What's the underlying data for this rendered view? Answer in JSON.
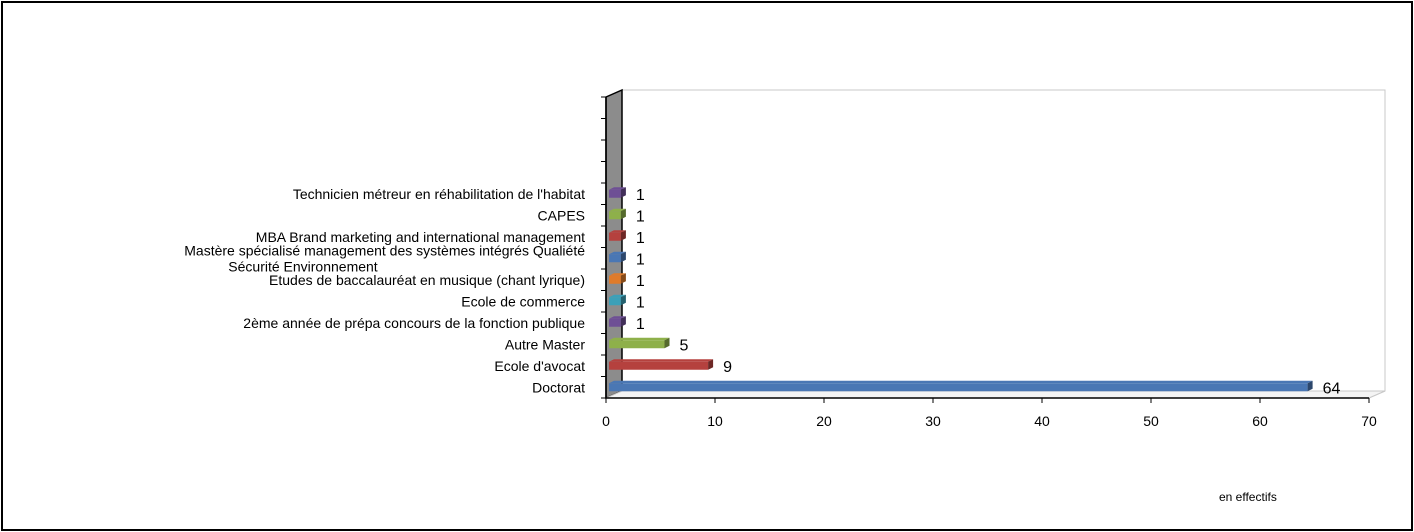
{
  "chart_data": {
    "type": "bar",
    "orientation": "horizontal",
    "categories": [
      "Doctorat",
      "Ecole d'avocat",
      "Autre Master",
      "2ème année de prépa concours de la fonction publique",
      "Ecole de commerce",
      "Etudes de baccalauréat en musique (chant lyrique)",
      "Mastère spécialisé management des systèmes intégrés Qualiété Sécurité Environnement",
      "MBA Brand marketing and international management",
      "CAPES",
      "Technicien métreur en réhabilitation de l'habitat"
    ],
    "values": [
      64,
      9,
      5,
      1,
      1,
      1,
      1,
      1,
      1,
      1
    ],
    "colors": [
      "#4a77b4",
      "#b5413e",
      "#8eb04a",
      "#6e4f95",
      "#3ca0b8",
      "#e07b2a",
      "#4a77b4",
      "#b5413e",
      "#8eb04a",
      "#6e4f95"
    ],
    "xlim": [
      0,
      70
    ],
    "xticks": [
      0,
      10,
      20,
      30,
      40,
      50,
      60,
      70
    ],
    "empty_slots": 4,
    "grid": false,
    "legend": "none",
    "note": "en effectifs"
  }
}
